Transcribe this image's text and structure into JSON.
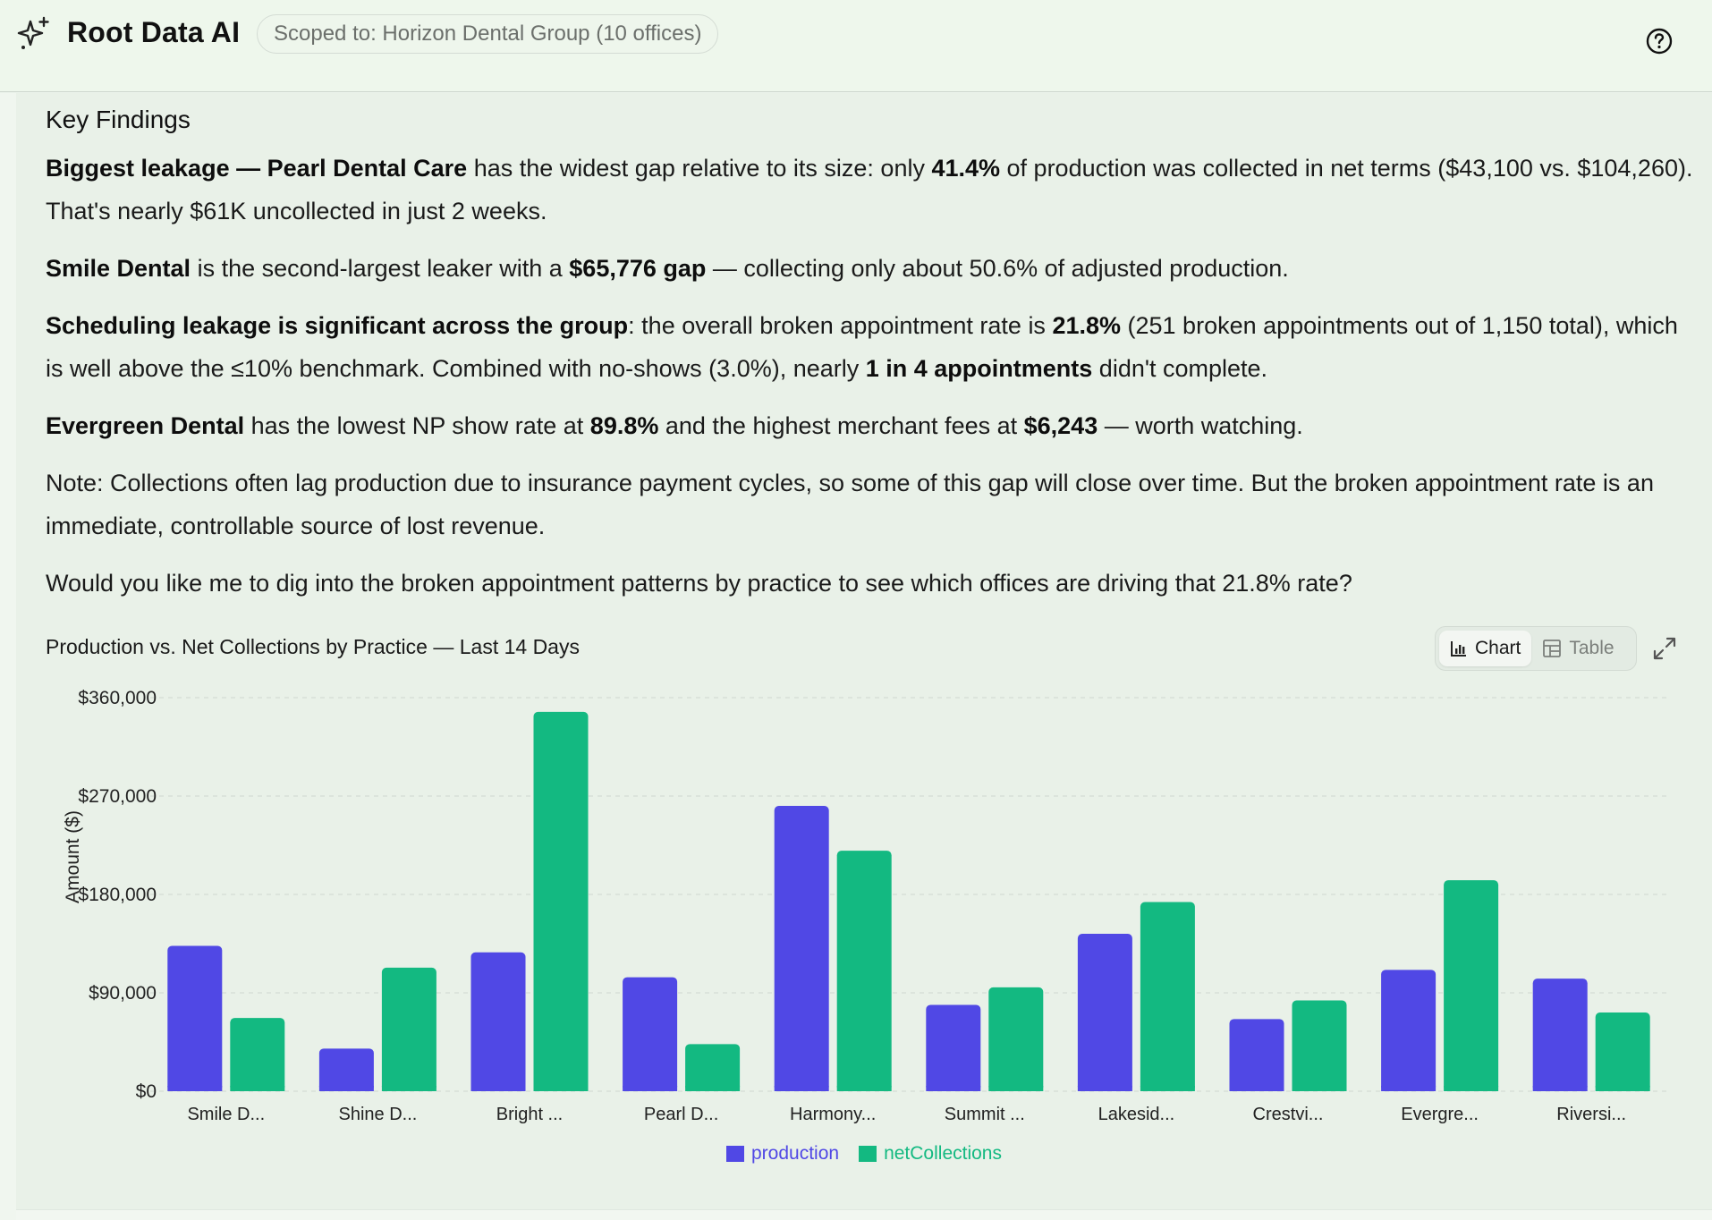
{
  "header": {
    "app_title": "Root Data AI",
    "scope_label": "Scoped to: Horizon Dental Group (10 offices)",
    "logo_icon": "sparkles-icon",
    "help_icon": "help-circle-icon"
  },
  "report": {
    "heading": "Key Findings",
    "p1": {
      "b1": "Biggest leakage — Pearl Dental Care",
      "t1": " has the widest gap relative to its size: only ",
      "b2": "41.4%",
      "t2": " of production was collected in net terms ($43,100 vs. $104,260). That's nearly $61K uncollected in just 2 weeks."
    },
    "p2": {
      "b1": "Smile Dental",
      "t1": " is the second-largest leaker with a ",
      "b2": "$65,776 gap",
      "t2": " — collecting only about 50.6% of adjusted production."
    },
    "p3": {
      "b1": "Scheduling leakage is significant across the group",
      "t1": ": the overall broken appointment rate is ",
      "b2": "21.8%",
      "t2": " (251 broken appointments out of 1,150 total), which is well above the ≤10% benchmark. Combined with no-shows (3.0%), nearly ",
      "b3": "1 in 4 appointments",
      "t3": " didn't complete."
    },
    "p4": {
      "b1": "Evergreen Dental",
      "t1": " has the lowest NP show rate at ",
      "b2": "89.8%",
      "t2": " and the highest merchant fees at ",
      "b3": "$6,243",
      "t3": " — worth watching."
    },
    "p5": "Note: Collections often lag production due to insurance payment cycles, so some of this gap will close over time. But the broken appointment rate is an immediate, controllable source of lost revenue.",
    "p6": "Would you like me to dig into the broken appointment patterns by practice to see which offices are driving that 21.8% rate?"
  },
  "chart_panel": {
    "toggle_chart": "Chart",
    "toggle_table": "Table",
    "expand_icon": "expand-icon"
  },
  "chart_data": {
    "type": "bar",
    "title": "Production vs. Net Collections by Practice — Last 14 Days",
    "ylabel": "Amount ($)",
    "ylim": [
      0,
      360000
    ],
    "yticks": [
      "$0",
      "$90,000",
      "$180,000",
      "$270,000",
      "$360,000"
    ],
    "ytick_values": [
      0,
      90000,
      180000,
      270000,
      360000
    ],
    "categories": [
      "Smile D...",
      "Shine D...",
      "Bright ...",
      "Pearl D...",
      "Harmony...",
      "Summit ...",
      "Lakesid...",
      "Crestvi...",
      "Evergre...",
      "Riversi..."
    ],
    "series": [
      {
        "name": "production",
        "color": "#5048e5",
        "values": [
          133000,
          39000,
          127000,
          104260,
          261000,
          79000,
          144000,
          66000,
          111000,
          103000
        ]
      },
      {
        "name": "netCollections",
        "color": "#13b981",
        "values": [
          67000,
          113000,
          347000,
          43100,
          220000,
          95000,
          173000,
          83000,
          193000,
          72000
        ]
      }
    ],
    "grid": true,
    "legend_position": "bottom"
  }
}
